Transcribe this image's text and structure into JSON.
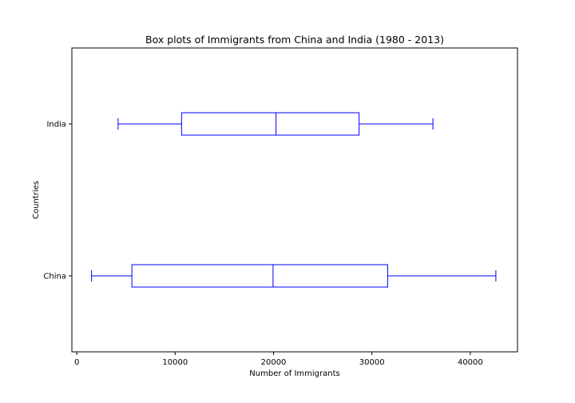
{
  "chart_data": {
    "type": "boxplot",
    "orientation": "horizontal",
    "title": "Box plots of Immigrants from China and India (1980 - 2013)",
    "xlabel": "Number of Immigrants",
    "ylabel": "Countries",
    "xlim": [
      -500,
      44800
    ],
    "x_ticks": [
      0,
      10000,
      20000,
      30000,
      40000
    ],
    "x_tick_labels": [
      "0",
      "10000",
      "20000",
      "30000",
      "40000"
    ],
    "categories": [
      "China",
      "India"
    ],
    "grid": false,
    "color": "#0000ff",
    "boxes": [
      {
        "category": "China",
        "whisker_low": 1500,
        "q1": 5600,
        "median": 19950,
        "q3": 31600,
        "whisker_high": 42600
      },
      {
        "category": "India",
        "whisker_low": 4200,
        "q1": 10650,
        "median": 20250,
        "q3": 28700,
        "whisker_high": 36200
      }
    ]
  }
}
